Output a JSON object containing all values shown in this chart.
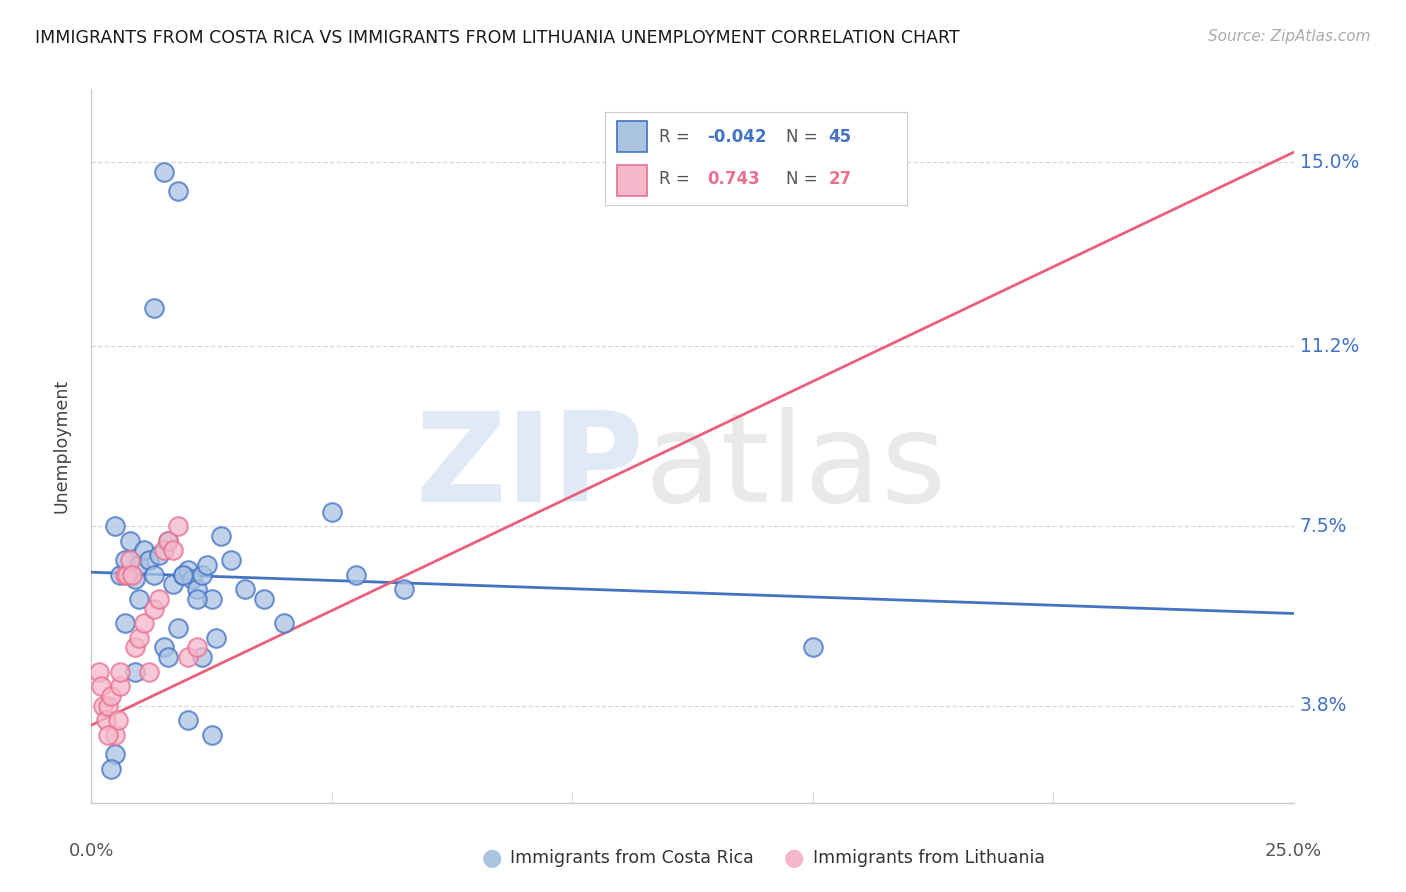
{
  "title": "IMMIGRANTS FROM COSTA RICA VS IMMIGRANTS FROM LITHUANIA UNEMPLOYMENT CORRELATION CHART",
  "source": "Source: ZipAtlas.com",
  "ylabel": "Unemployment",
  "y_ticks": [
    3.8,
    7.5,
    11.2,
    15.0
  ],
  "x_range": [
    0.0,
    25.0
  ],
  "y_range": [
    1.8,
    16.5
  ],
  "color_cr_fill": "#aac4e2",
  "color_cr_edge": "#4472c4",
  "color_lith_fill": "#f5b8cb",
  "color_lith_edge": "#e87090",
  "color_cr_line": "#4472c4",
  "color_lith_line": "#e8607a",
  "costa_rica_x": [
    1.5,
    1.8,
    0.5,
    0.6,
    0.7,
    0.8,
    0.9,
    1.0,
    1.1,
    1.2,
    1.3,
    1.4,
    1.6,
    1.7,
    1.9,
    2.0,
    2.1,
    2.2,
    2.3,
    2.4,
    2.5,
    2.7,
    2.9,
    3.2,
    3.6,
    4.0,
    5.5,
    6.5,
    15.0,
    1.3,
    0.7,
    1.0,
    1.9,
    2.2,
    2.6,
    1.5,
    1.8,
    2.3,
    0.9,
    1.6,
    2.0,
    2.5,
    0.5,
    0.4,
    5.0
  ],
  "costa_rica_y": [
    14.8,
    14.4,
    7.5,
    6.5,
    6.8,
    7.2,
    6.4,
    6.7,
    7.0,
    6.8,
    6.5,
    6.9,
    7.2,
    6.3,
    6.5,
    6.6,
    6.4,
    6.2,
    6.5,
    6.7,
    6.0,
    7.3,
    6.8,
    6.2,
    6.0,
    5.5,
    6.5,
    6.2,
    5.0,
    12.0,
    5.5,
    6.0,
    6.5,
    6.0,
    5.2,
    5.0,
    5.4,
    4.8,
    4.5,
    4.8,
    3.5,
    3.2,
    2.8,
    2.5,
    7.8
  ],
  "lithuania_x": [
    0.15,
    0.2,
    0.25,
    0.3,
    0.35,
    0.4,
    0.5,
    0.55,
    0.6,
    0.7,
    0.75,
    0.8,
    0.9,
    1.0,
    1.1,
    1.2,
    1.3,
    1.4,
    1.5,
    1.6,
    1.7,
    1.8,
    2.0,
    2.2,
    0.35,
    0.6,
    0.85
  ],
  "lithuania_y": [
    4.5,
    4.2,
    3.8,
    3.5,
    3.8,
    4.0,
    3.2,
    3.5,
    4.2,
    6.5,
    6.5,
    6.8,
    5.0,
    5.2,
    5.5,
    4.5,
    5.8,
    6.0,
    7.0,
    7.2,
    7.0,
    7.5,
    4.8,
    5.0,
    3.2,
    4.5,
    6.5
  ]
}
